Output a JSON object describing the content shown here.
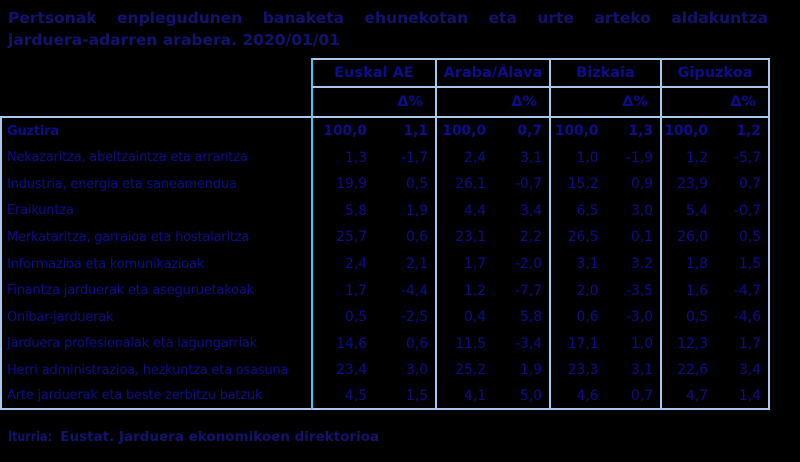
{
  "title": {
    "line1": "Pertsonak enplegudunen banaketa ehunekotan eta urte arteko aldakuntza",
    "line2": "jarduera-adarren arabera. 2020/01/01"
  },
  "table": {
    "column_groups": [
      "Euskal AE",
      "Araba/Álava",
      "Bizkaia",
      "Gipuzkoa"
    ],
    "delta_label": "Δ%",
    "rows": [
      {
        "label": "Guztira",
        "total": true,
        "values": [
          "100,0",
          "1,1",
          "100,0",
          "0,7",
          "100,0",
          "1,3",
          "100,0",
          "1,2"
        ]
      },
      {
        "label": "Nekazaritza, abeltzaintza eta arrantza",
        "total": false,
        "values": [
          "1,3",
          "-1,7",
          "2,4",
          "3,1",
          "1,0",
          "-1,9",
          "1,2",
          "-5,7"
        ]
      },
      {
        "label": "Industria, energia eta saneamendua",
        "total": false,
        "values": [
          "19,9",
          "0,5",
          "26,1",
          "-0,7",
          "15,2",
          "0,9",
          "23,9",
          "0,7"
        ]
      },
      {
        "label": "Eraikuntza",
        "total": false,
        "values": [
          "5,8",
          "1,9",
          "4,4",
          "3,4",
          "6,5",
          "3,0",
          "5,4",
          "-0,7"
        ]
      },
      {
        "label": "Merkataritza, garraioa eta hostalaritza",
        "total": false,
        "values": [
          "25,7",
          "0,6",
          "23,1",
          "2,2",
          "26,5",
          "0,1",
          "26,0",
          "0,5"
        ]
      },
      {
        "label": "Informazioa eta komunikazioak",
        "total": false,
        "values": [
          "2,4",
          "2,1",
          "1,7",
          "-2,0",
          "3,1",
          "3,2",
          "1,8",
          "1,5"
        ]
      },
      {
        "label": "Finantza jarduerak eta aseguruetakoak",
        "total": false,
        "values": [
          "1,7",
          "-4,4",
          "1,2",
          "-7,7",
          "2,0",
          "-3,5",
          "1,6",
          "-4,7"
        ]
      },
      {
        "label": "Onibar-jarduerak",
        "total": false,
        "values": [
          "0,5",
          "-2,5",
          "0,4",
          "5,8",
          "0,6",
          "-3,0",
          "0,5",
          "-4,6"
        ]
      },
      {
        "label": "Jarduera profesionalak eta lagungarriak",
        "total": false,
        "values": [
          "14,6",
          "0,6",
          "11,5",
          "-3,4",
          "17,1",
          "1,0",
          "12,3",
          "1,7"
        ]
      },
      {
        "label": "Herri administrazioa, hezkuntza eta osasuna",
        "total": false,
        "values": [
          "23,4",
          "3,0",
          "25,2",
          "1,9",
          "23,3",
          "3,1",
          "22,6",
          "3,4"
        ]
      },
      {
        "label": "Arte jarduerak eta beste zerbitzu batzuk",
        "total": false,
        "values": [
          "4,5",
          "1,5",
          "4,1",
          "5,0",
          "4,6",
          "0,7",
          "4,7",
          "1,4"
        ]
      }
    ]
  },
  "footer": {
    "prefix": "Iturria:",
    "text": "Eustat. Jarduera ekonomikoen direktorioa"
  },
  "colors": {
    "background": "#000000",
    "title_text": "#13136f",
    "table_text": "#0d0d8c",
    "border_light_blue": "#a8c9ee",
    "border_cyan": "#3fc8f8"
  },
  "chart_data": {
    "type": "table",
    "title": "Pertsonak enplegudunen banaketa ehunekotan eta urte arteko aldakuntza jarduera-adarren arabera. 2020/01/01",
    "columns": [
      "Euskal AE %",
      "Euskal AE Δ%",
      "Araba/Álava %",
      "Araba/Álava Δ%",
      "Bizkaia %",
      "Bizkaia Δ%",
      "Gipuzkoa %",
      "Gipuzkoa Δ%"
    ],
    "row_labels": [
      "Guztira",
      "Nekazaritza, abeltzaintza eta arrantza",
      "Industria, energia eta saneamendua",
      "Eraikuntza",
      "Merkataritza, garraioa eta hostalaritza",
      "Informazioa eta komunikazioak",
      "Finantza jarduerak eta aseguruetakoak",
      "Onibar-jarduerak",
      "Jarduera profesionalak eta lagungarriak",
      "Herri administrazioa, hezkuntza eta osasuna",
      "Arte jarduerak eta beste zerbitzu batzuk"
    ],
    "values": [
      [
        100.0,
        1.1,
        100.0,
        0.7,
        100.0,
        1.3,
        100.0,
        1.2
      ],
      [
        1.3,
        -1.7,
        2.4,
        3.1,
        1.0,
        -1.9,
        1.2,
        -5.7
      ],
      [
        19.9,
        0.5,
        26.1,
        -0.7,
        15.2,
        0.9,
        23.9,
        0.7
      ],
      [
        5.8,
        1.9,
        4.4,
        3.4,
        6.5,
        3.0,
        5.4,
        -0.7
      ],
      [
        25.7,
        0.6,
        23.1,
        2.2,
        26.5,
        0.1,
        26.0,
        0.5
      ],
      [
        2.4,
        2.1,
        1.7,
        -2.0,
        3.1,
        3.2,
        1.8,
        1.5
      ],
      [
        1.7,
        -4.4,
        1.2,
        -7.7,
        2.0,
        -3.5,
        1.6,
        -4.7
      ],
      [
        0.5,
        -2.5,
        0.4,
        5.8,
        0.6,
        -3.0,
        0.5,
        -4.6
      ],
      [
        14.6,
        0.6,
        11.5,
        -3.4,
        17.1,
        1.0,
        12.3,
        1.7
      ],
      [
        23.4,
        3.0,
        25.2,
        1.9,
        23.3,
        3.1,
        22.6,
        3.4
      ],
      [
        4.5,
        1.5,
        4.1,
        5.0,
        4.6,
        0.7,
        4.7,
        1.4
      ]
    ],
    "source": "Iturria: Eustat. Jarduera ekonomikoen direktorioa",
    "grid": true,
    "legend_position": "none"
  }
}
